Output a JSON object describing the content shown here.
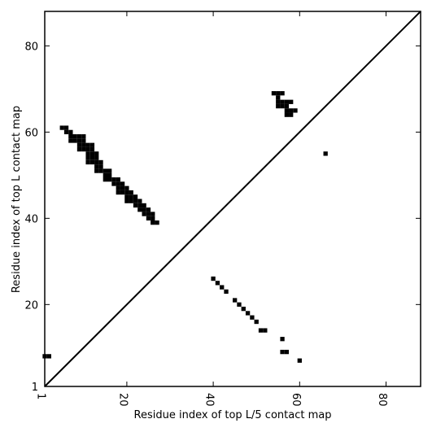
{
  "chart_data": {
    "type": "scatter",
    "xlabel": "Residue index of top L/5 contact map",
    "ylabel": "Residue index of top L contact map",
    "xlim": [
      1,
      88
    ],
    "ylim": [
      1,
      88
    ],
    "xticks": [
      1,
      20,
      40,
      60,
      80
    ],
    "yticks": [
      1,
      20,
      40,
      60,
      80
    ],
    "color": "#000000",
    "x": [
      5,
      6,
      6,
      7,
      7,
      8,
      9,
      10,
      7,
      8,
      9,
      10,
      9,
      10,
      11,
      12,
      9,
      10,
      11,
      12,
      11,
      12,
      13,
      11,
      12,
      13,
      11,
      12,
      13,
      14,
      13,
      14,
      13,
      14,
      15,
      16,
      15,
      16,
      15,
      16,
      17,
      18,
      17,
      18,
      19,
      18,
      19,
      20,
      18,
      19,
      20,
      21,
      20,
      21,
      22,
      20,
      21,
      22,
      23,
      22,
      23,
      24,
      23,
      24,
      25,
      24,
      25,
      26,
      25,
      26,
      26,
      27,
      54,
      55,
      56,
      55,
      55,
      56,
      57,
      58,
      55,
      56,
      57,
      57,
      58,
      59,
      57,
      58,
      66,
      1,
      2,
      40,
      41,
      42,
      43,
      45,
      46,
      47,
      48,
      49,
      50,
      51,
      52,
      56,
      56,
      57,
      60
    ],
    "y": [
      61,
      61,
      60,
      60,
      59,
      59,
      59,
      59,
      58,
      58,
      58,
      58,
      57,
      57,
      57,
      57,
      56,
      56,
      56,
      56,
      55,
      55,
      55,
      54,
      54,
      54,
      53,
      53,
      53,
      53,
      52,
      52,
      51,
      51,
      51,
      51,
      50,
      50,
      49,
      49,
      49,
      49,
      48,
      48,
      48,
      47,
      47,
      47,
      46,
      46,
      46,
      46,
      45,
      45,
      45,
      44,
      44,
      44,
      44,
      43,
      43,
      43,
      42,
      42,
      42,
      41,
      41,
      41,
      40,
      40,
      39,
      39,
      69,
      69,
      69,
      68,
      67,
      67,
      67,
      67,
      66,
      66,
      66,
      65,
      65,
      65,
      64,
      64,
      55,
      8,
      8,
      26,
      25,
      24,
      23,
      21,
      20,
      19,
      18,
      17,
      16,
      14,
      14,
      12,
      9,
      9,
      7
    ]
  }
}
